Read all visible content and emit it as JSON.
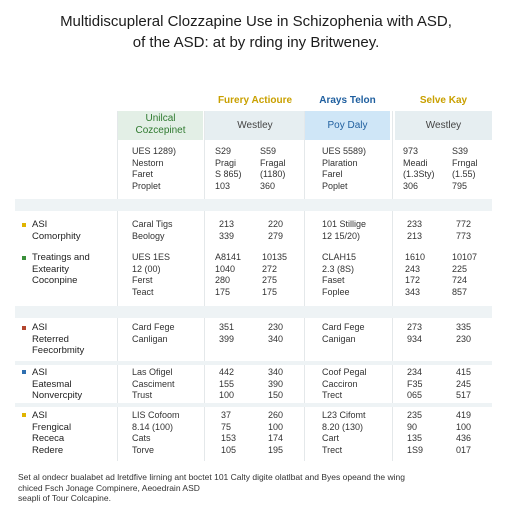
{
  "title": {
    "line1": "Multidiscupleral Clozzapine Use in Schizophenia with ASD,",
    "line2": "of the ASD: at by rding iny Britweney."
  },
  "column_groups": {
    "g1": "Furery Actioure",
    "g2": "Arays Telon",
    "g3": "Selve Kay"
  },
  "headers": {
    "c1": "Unilcal\nCozcepinet",
    "c2": "Westley",
    "c3": "Poy Daly",
    "c4": "Westley"
  },
  "rows": [
    {
      "labels": "",
      "c1": "UES 1289)\nNestorn\nFaret\nProplet",
      "c2a": "S29\nPragi\nS 865)\n103",
      "c2b": "S59\nFragal\n(1180)\n360",
      "c3": "UES 5589)\nPlaration\nFarel\nPoplet",
      "c4a": "973\nMeadi\n(1.3Sty)\n306",
      "c4b": "S39\nFrngal\n(1.55)\n795"
    },
    {
      "labels": "ASI\nComorphity",
      "c1": "Caral Tigs\nBeology",
      "c2a": "213\n339",
      "c2b": "220\n279",
      "c3": "101 Stillige\n12 15/20)",
      "c4a": "233\n213",
      "c4b": "772\n773"
    },
    {
      "labels": "Treatings and\nExtearity\nCoconpine",
      "c1": "UES 1ES\n12 (00)\nFerst\nTeact",
      "c2a": "A8141\n1040\n280\n175",
      "c2b": "10135\n272\n275\n175",
      "c3": "CLAH15\n2.3 (8S)\nFaset\nFoplee",
      "c4a": "1610\n243\n172\n343",
      "c4b": "10107\n225\n724\n857"
    },
    {
      "labels": "ASI\nReterred\nFeecorbmity",
      "c1": "Card Fege\nCanligan",
      "c2a": "351\n399",
      "c2b": "230\n340",
      "c3": "Card Fege\nCanigan",
      "c4a": "273\n934",
      "c4b": "335\n230"
    },
    {
      "labels": "ASI\nEatesmal\nNonvercpity",
      "c1": "Las Ofigel\nCasciment\nTrust",
      "c2a": "442\n155\n100",
      "c2b": "340\n390\n150",
      "c3": "Coof Pegal\nCacciron\nTrect",
      "c4a": "234\nF35\n065",
      "c4b": "415\n245\n517"
    },
    {
      "labels": "ASI\nFrengical\nRececa\nRedere",
      "c1": "LIS Cofoom\n8.14 (100)\nCats\nTorve",
      "c2a": "37\n75\n153\n105",
      "c2b": "260\n100\n174\n195",
      "c3": "L23 Cifomt\n8.20 (130)\nCart\nTrect",
      "c4a": "235\n90\n135\n1S9",
      "c4b": "419\n100\n436\n017"
    }
  ],
  "footnote": {
    "line1": "Set al ondecr bualabet ad lretdfive lirning ant boctet 101 Calty digite olatlbat and Byes opeand the wing",
    "line2": "chiced Fsch Jonage Compinere, Aeoedrain ASD",
    "line3": "seapli of Tour Colcapine."
  },
  "colors": {
    "green_marker": "#3a8f3a",
    "yellow_marker": "#e0b400",
    "red_marker": "#b3462f",
    "blue_marker": "#2f6fb0",
    "header_highlight": "#cfe6f7"
  }
}
